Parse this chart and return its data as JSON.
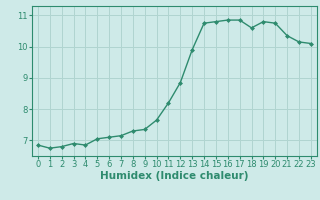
{
  "x": [
    0,
    1,
    2,
    3,
    4,
    5,
    6,
    7,
    8,
    9,
    10,
    11,
    12,
    13,
    14,
    15,
    16,
    17,
    18,
    19,
    20,
    21,
    22,
    23
  ],
  "y": [
    6.85,
    6.75,
    6.8,
    6.9,
    6.85,
    7.05,
    7.1,
    7.15,
    7.3,
    7.35,
    7.65,
    8.2,
    8.85,
    9.9,
    10.75,
    10.8,
    10.85,
    10.85,
    10.6,
    10.8,
    10.75,
    10.35,
    10.15,
    10.1
  ],
  "line_color": "#2e8b6e",
  "marker": "D",
  "marker_size": 2.0,
  "bg_color": "#ceeae8",
  "grid_color": "#b0d4d0",
  "xlabel": "Humidex (Indice chaleur)",
  "xlim": [
    -0.5,
    23.5
  ],
  "ylim": [
    6.5,
    11.3
  ],
  "yticks": [
    7,
    8,
    9,
    10,
    11
  ],
  "xticks": [
    0,
    1,
    2,
    3,
    4,
    5,
    6,
    7,
    8,
    9,
    10,
    11,
    12,
    13,
    14,
    15,
    16,
    17,
    18,
    19,
    20,
    21,
    22,
    23
  ],
  "tick_fontsize": 6.0,
  "xlabel_fontsize": 7.5,
  "line_width": 1.0
}
